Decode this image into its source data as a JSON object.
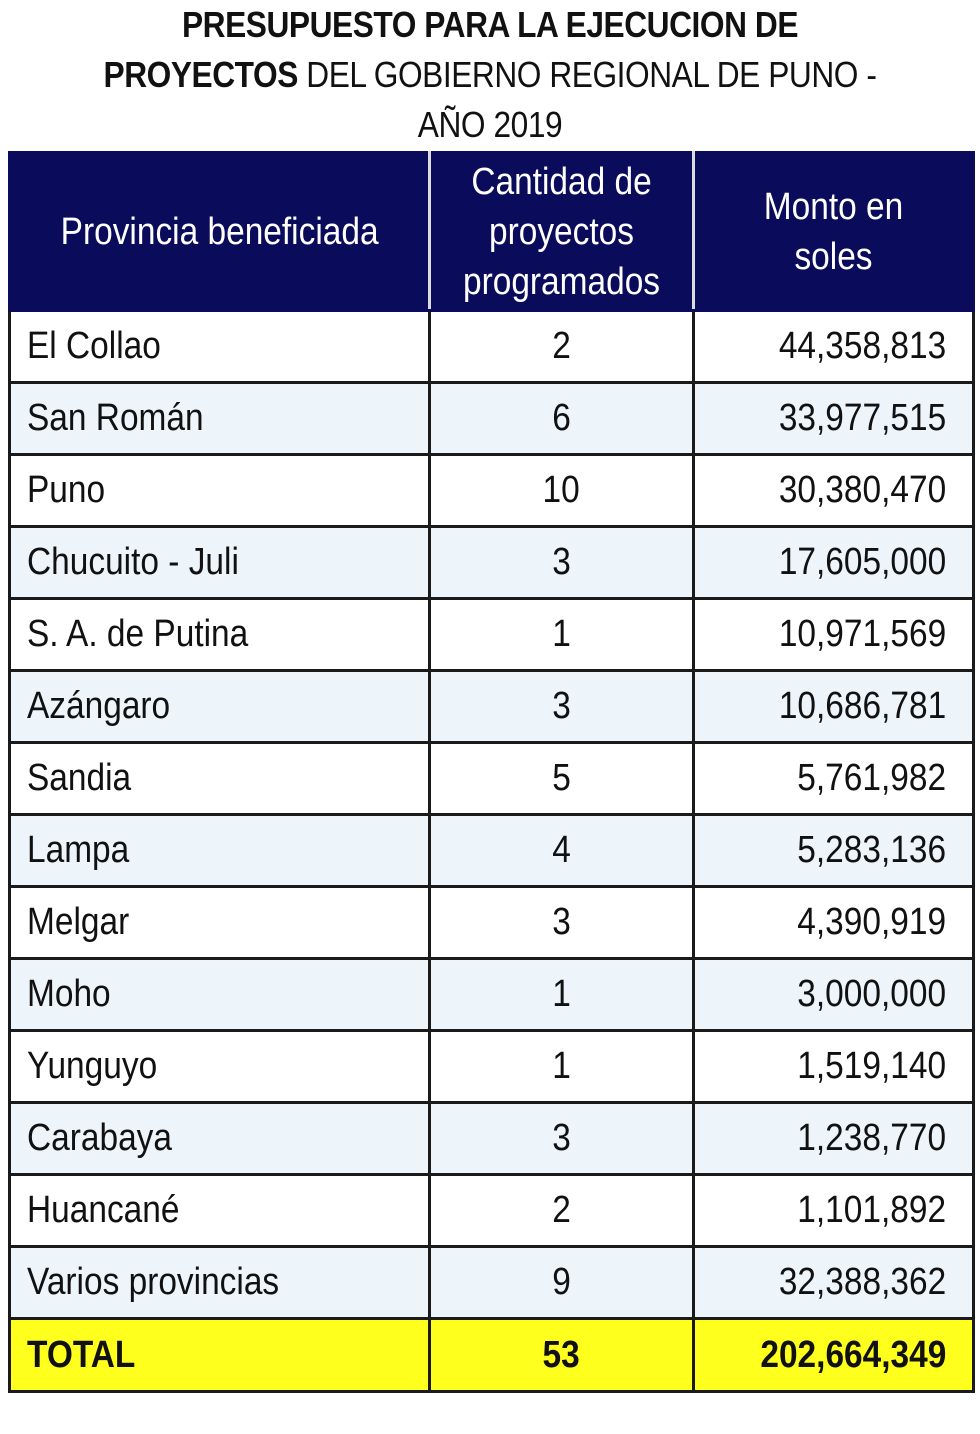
{
  "title": {
    "line1": "PRESUPUESTO PARA LA EJECUCION DE",
    "line2_bold": "PROYECTOS",
    "line2_rest": " DEL GOBIERNO REGIONAL DE PUNO -",
    "line3": "AÑO 2019"
  },
  "table": {
    "headers": [
      "Provincia beneficiada",
      "Cantidad de proyectos programados",
      "Monto en soles"
    ],
    "rows": [
      {
        "provincia": "El Collao",
        "cantidad": "2",
        "monto": "44,358,813"
      },
      {
        "provincia": "San Román",
        "cantidad": "6",
        "monto": "33,977,515"
      },
      {
        "provincia": "Puno",
        "cantidad": "10",
        "monto": "30,380,470"
      },
      {
        "provincia": "Chucuito - Juli",
        "cantidad": "3",
        "monto": "17,605,000"
      },
      {
        "provincia": "S. A. de Putina",
        "cantidad": "1",
        "monto": "10,971,569"
      },
      {
        "provincia": "Azángaro",
        "cantidad": "3",
        "monto": "10,686,781"
      },
      {
        "provincia": "Sandia",
        "cantidad": "5",
        "monto": "5,761,982"
      },
      {
        "provincia": "Lampa",
        "cantidad": "4",
        "monto": "5,283,136"
      },
      {
        "provincia": "Melgar",
        "cantidad": "3",
        "monto": "4,390,919"
      },
      {
        "provincia": "Moho",
        "cantidad": "1",
        "monto": "3,000,000"
      },
      {
        "provincia": "Yunguyo",
        "cantidad": "1",
        "monto": "1,519,140"
      },
      {
        "provincia": "Carabaya",
        "cantidad": "3",
        "monto": "1,238,770"
      },
      {
        "provincia": "Huancané",
        "cantidad": "2",
        "monto": "1,101,892"
      },
      {
        "provincia": "Varios provincias",
        "cantidad": "9",
        "monto": "32,388,362"
      }
    ],
    "total": {
      "label": "TOTAL",
      "cantidad": "53",
      "monto": "202,664,349"
    }
  },
  "colors": {
    "header_bg": "#0b0b5c",
    "header_text": "#ffffff",
    "row_alt_bg": "#eef5fa",
    "total_bg": "#ffff1e"
  }
}
